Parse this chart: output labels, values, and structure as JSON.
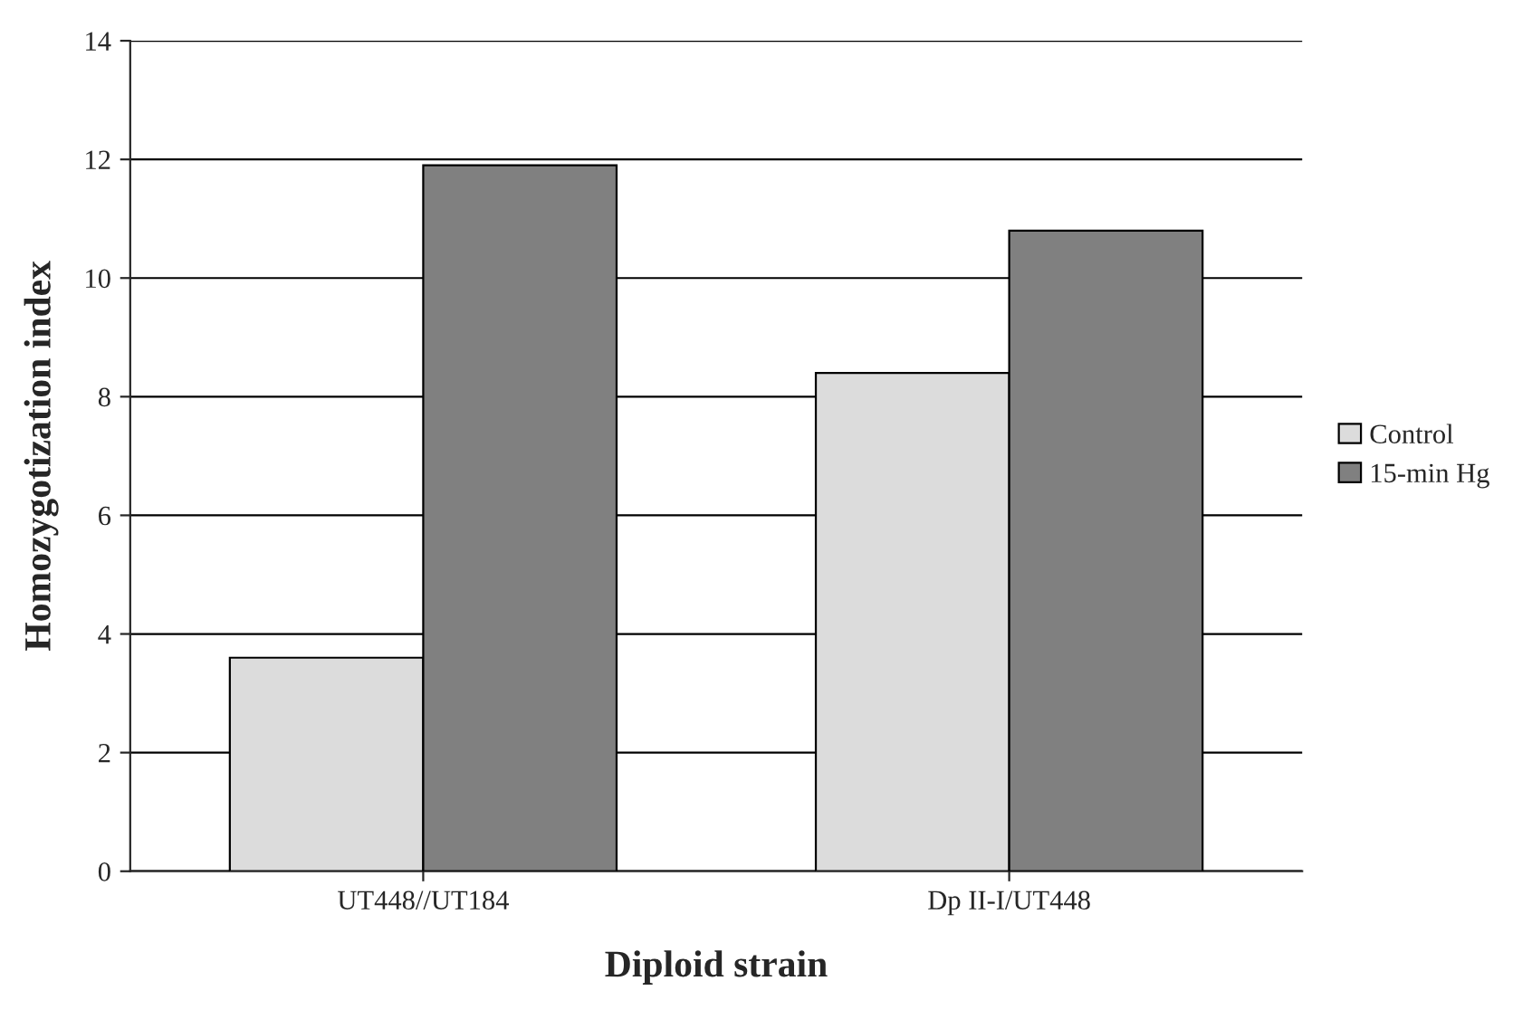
{
  "chart_data": {
    "type": "bar",
    "xlabel": "Diploid strain",
    "ylabel": "Homozygotization index",
    "categories": [
      "UT448//UT184",
      "Dp II-I/UT448"
    ],
    "series": [
      {
        "name": "Control",
        "color": "#dcdcdc",
        "values": [
          3.6,
          8.4
        ]
      },
      {
        "name": "15-min Hg",
        "color": "#808080",
        "values": [
          11.9,
          10.8
        ]
      }
    ],
    "ylim": [
      0,
      14
    ],
    "yticks": [
      0,
      2,
      4,
      6,
      8,
      10,
      12,
      14
    ],
    "grid": "y",
    "legend": "right"
  }
}
